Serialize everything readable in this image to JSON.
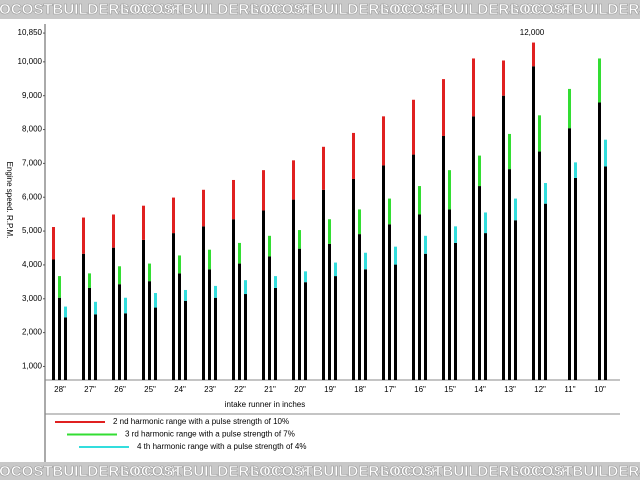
{
  "watermark": "LOCOSTBUILDERS.CO.UK",
  "chart_data": {
    "type": "range-bar",
    "x_label": "intake runner in inches",
    "y_label": "Engine speed. R.P.M.",
    "annotation": "12,000",
    "categories": [
      "28\"",
      "27\"",
      "26\"",
      "25\"",
      "24\"",
      "23\"",
      "22\"",
      "21\"",
      "20\"",
      "19\"",
      "18\"",
      "17\"",
      "16\"",
      "15\"",
      "14\"",
      "13\"",
      "12\"",
      "11\"",
      "10\""
    ],
    "base_color": "#000000",
    "series": [
      {
        "name": "2 nd harmonic range with a pulse strength of 10%",
        "color": "#e02020",
        "low": [
          4160,
          4330,
          4510,
          4740,
          4940,
          5140,
          5350,
          5610,
          5930,
          6220,
          6540,
          6940,
          7260,
          7810,
          8390,
          9000,
          9870,
          null,
          null
        ],
        "high": [
          5120,
          5400,
          5490,
          5750,
          5990,
          6220,
          6510,
          6800,
          7090,
          7490,
          7900,
          8390,
          8880,
          9490,
          10100,
          10040,
          10570,
          null,
          null
        ]
      },
      {
        "name": "3 rd harmonic range with a pulse strength of 7%",
        "color": "#33dd33",
        "low": [
          3030,
          3320,
          3430,
          3520,
          3750,
          3870,
          4040,
          4250,
          4480,
          4620,
          4910,
          5200,
          5490,
          5640,
          6330,
          6830,
          7350,
          8040,
          8800
        ],
        "high": [
          3670,
          3750,
          3960,
          4040,
          4280,
          4450,
          4650,
          4860,
          5030,
          5350,
          5640,
          5960,
          6330,
          6800,
          7230,
          7870,
          8420,
          9200,
          10100
        ]
      },
      {
        "name": "4 th harmonic range with a pulse strength of 4%",
        "color": "#33dddd",
        "low": [
          2450,
          2540,
          2570,
          2740,
          2940,
          3030,
          3140,
          3320,
          3490,
          3670,
          3870,
          4010,
          4330,
          4650,
          4940,
          5320,
          5810,
          6570,
          6910
        ],
        "high": [
          2770,
          2910,
          3030,
          3170,
          3260,
          3380,
          3550,
          3670,
          3810,
          4070,
          4360,
          4540,
          4860,
          5140,
          5550,
          5960,
          6420,
          7030,
          7700
        ]
      }
    ],
    "ylim": [
      600,
      11000
    ],
    "yticks": [
      {
        "value": 1000,
        "label": "1,000"
      },
      {
        "value": 2000,
        "label": "2,000"
      },
      {
        "value": 3000,
        "label": "3,000"
      },
      {
        "value": 4000,
        "label": "4,000"
      },
      {
        "value": 5000,
        "label": "5,000"
      },
      {
        "value": 6000,
        "label": "6,000"
      },
      {
        "value": 7000,
        "label": "7,000"
      },
      {
        "value": 8000,
        "label": "8,000"
      },
      {
        "value": 9000,
        "label": "9,000"
      },
      {
        "value": 10000,
        "label": "10,000"
      },
      {
        "value": 10850,
        "label": "10,850"
      }
    ],
    "grid": false
  }
}
